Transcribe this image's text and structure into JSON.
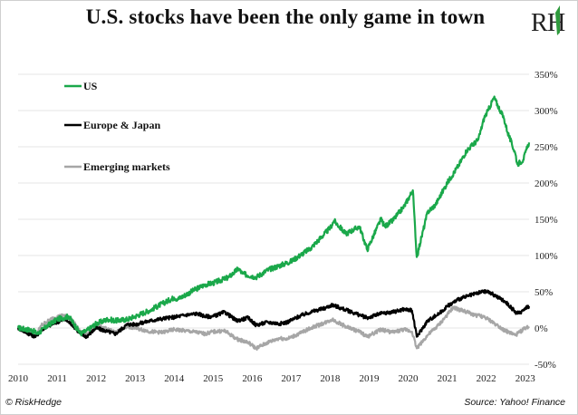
{
  "header": {
    "title": "U.S. stocks have been the only game in town",
    "logo_text": "RH"
  },
  "footer": {
    "left": "© RiskHedge",
    "right": "Source: Yahoo! Finance"
  },
  "colors": {
    "us": "#1aa84a",
    "europe_japan": "#000000",
    "emerging": "#a6a6a6",
    "grid": "#e6e6e6",
    "logo_green": "#2e9a3c"
  },
  "chart_data": {
    "type": "line",
    "title": "U.S. stocks have been the only game in town",
    "xlabel": "",
    "ylabel": "",
    "x_ticks": [
      "2010",
      "2011",
      "2012",
      "2013",
      "2014",
      "2015",
      "2016",
      "2017",
      "2018",
      "2019",
      "2020",
      "2021",
      "2022",
      "2023"
    ],
    "y_ticks": [
      "350%",
      "300%",
      "250%",
      "200%",
      "150%",
      "100%",
      "50%",
      "0%",
      "-50%"
    ],
    "ylim": [
      -50,
      350
    ],
    "xlim": [
      2010.0,
      2023.1
    ],
    "grid": "horizontal",
    "legend_position": "top-left",
    "series": [
      {
        "name": "US",
        "x": [
          2010.0,
          2010.35,
          2010.5,
          2010.75,
          2011.0,
          2011.3,
          2011.6,
          2011.75,
          2012.0,
          2012.3,
          2012.5,
          2012.8,
          2013.0,
          2013.4,
          2013.5,
          2014.0,
          2014.1,
          2014.5,
          2014.8,
          2015.0,
          2015.4,
          2015.65,
          2015.75,
          2016.1,
          2016.4,
          2016.8,
          2017.0,
          2017.5,
          2018.0,
          2018.1,
          2018.4,
          2018.75,
          2018.95,
          2019.3,
          2019.4,
          2019.6,
          2019.9,
          2020.12,
          2020.22,
          2020.5,
          2020.7,
          2020.9,
          2021.0,
          2021.3,
          2021.5,
          2021.8,
          2021.95,
          2022.05,
          2022.2,
          2022.45,
          2022.55,
          2022.75,
          2022.8,
          2022.95,
          2023.1
        ],
        "values": [
          0,
          -3,
          -8,
          3,
          12,
          16,
          -8,
          -4,
          6,
          12,
          10,
          12,
          16,
          25,
          28,
          42,
          40,
          52,
          60,
          62,
          70,
          82,
          75,
          70,
          80,
          88,
          92,
          110,
          138,
          148,
          130,
          140,
          108,
          150,
          140,
          148,
          168,
          190,
          98,
          160,
          170,
          190,
          200,
          225,
          245,
          260,
          290,
          300,
          318,
          290,
          270,
          240,
          226,
          232,
          256
        ]
      },
      {
        "name": "Europe & Japan",
        "x": [
          2010.0,
          2010.2,
          2010.45,
          2010.6,
          2010.9,
          2011.2,
          2011.4,
          2011.6,
          2011.75,
          2012.0,
          2012.3,
          2012.5,
          2012.8,
          2013.0,
          2013.4,
          2013.7,
          2014.0,
          2014.3,
          2014.6,
          2014.8,
          2015.0,
          2015.3,
          2015.6,
          2015.9,
          2016.1,
          2016.4,
          2016.7,
          2016.9,
          2017.2,
          2017.5,
          2017.9,
          2018.05,
          2018.4,
          2018.75,
          2018.95,
          2019.3,
          2019.6,
          2019.9,
          2020.1,
          2020.22,
          2020.5,
          2020.8,
          2021.0,
          2021.3,
          2021.6,
          2021.9,
          2022.05,
          2022.25,
          2022.5,
          2022.75,
          2022.85,
          2023.0,
          2023.1
        ],
        "values": [
          0,
          -6,
          -12,
          -2,
          6,
          12,
          4,
          -8,
          -12,
          0,
          -5,
          -8,
          5,
          5,
          10,
          13,
          15,
          18,
          20,
          16,
          16,
          22,
          10,
          14,
          4,
          8,
          6,
          8,
          16,
          22,
          28,
          32,
          25,
          18,
          14,
          20,
          22,
          26,
          24,
          -12,
          10,
          20,
          30,
          40,
          45,
          50,
          50,
          44,
          36,
          22,
          20,
          28,
          30
        ]
      },
      {
        "name": "Emerging markets",
        "x": [
          2010.0,
          2010.2,
          2010.45,
          2010.6,
          2010.9,
          2011.2,
          2011.4,
          2011.6,
          2011.75,
          2012.0,
          2012.3,
          2012.5,
          2012.8,
          2013.0,
          2013.4,
          2013.7,
          2014.0,
          2014.3,
          2014.6,
          2014.8,
          2015.0,
          2015.3,
          2015.6,
          2015.9,
          2016.1,
          2016.4,
          2016.7,
          2016.9,
          2017.2,
          2017.5,
          2017.9,
          2018.05,
          2018.4,
          2018.75,
          2018.95,
          2019.3,
          2019.6,
          2019.9,
          2020.1,
          2020.22,
          2020.5,
          2020.8,
          2021.0,
          2021.15,
          2021.4,
          2021.7,
          2021.9,
          2022.05,
          2022.25,
          2022.5,
          2022.75,
          2022.85,
          2023.0,
          2023.1
        ],
        "values": [
          2,
          -4,
          -10,
          4,
          14,
          18,
          10,
          -6,
          -8,
          4,
          -2,
          -6,
          2,
          0,
          -5,
          -6,
          -2,
          -4,
          -6,
          -8,
          -5,
          -4,
          -15,
          -20,
          -28,
          -20,
          -14,
          -15,
          -8,
          0,
          8,
          12,
          2,
          -5,
          -12,
          -2,
          -6,
          -2,
          -5,
          -28,
          -10,
          5,
          18,
          28,
          24,
          18,
          16,
          12,
          5,
          -4,
          -10,
          -6,
          0,
          2
        ]
      }
    ]
  }
}
